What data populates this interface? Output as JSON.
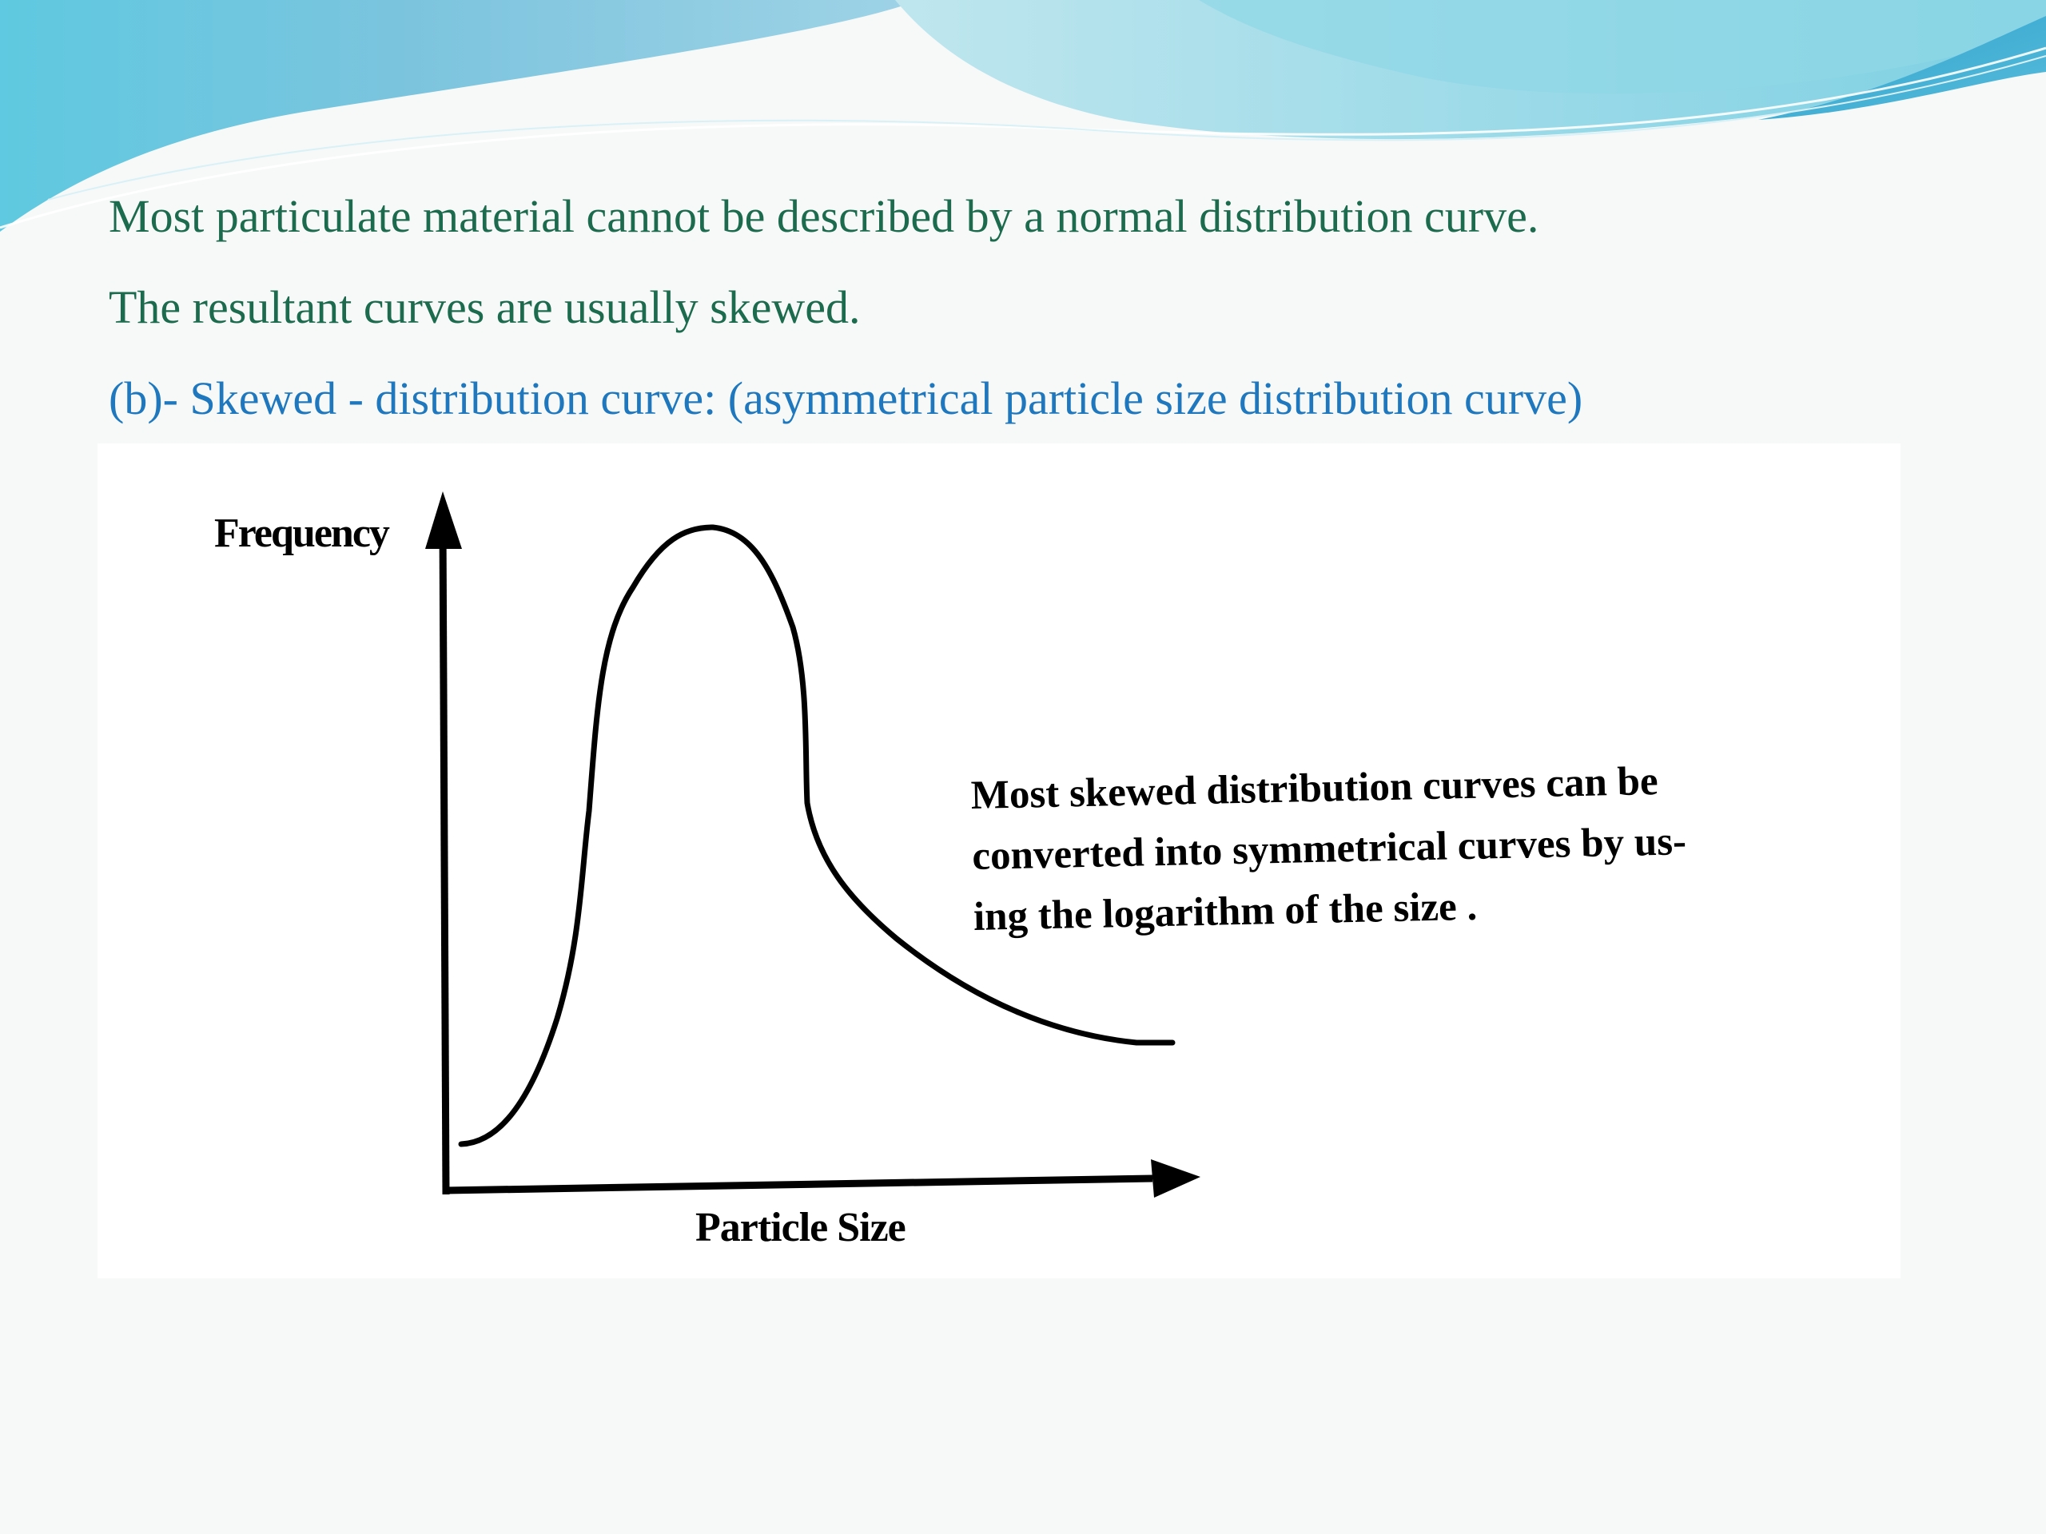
{
  "slide": {
    "lines": [
      "Most particulate material cannot be described by a normal distribution curve.",
      "The resultant curves are usually skewed.",
      "(b)- Skewed - distribution curve: (asymmetrical particle size distribution curve)"
    ],
    "colors": {
      "body_text": "#1d6b4e",
      "subheading_text": "#1f78be",
      "wave_light": "#a8dbe8",
      "wave_dark": "#3fa9cf"
    }
  },
  "figure": {
    "y_axis_label": "Frequency",
    "x_axis_label": "Particle Size",
    "annotation": [
      "Most skewed distribution curves can be",
      "converted into symmetrical curves by us-",
      "ing the logarithm of the size ."
    ],
    "curve": "right-skewed (positively skewed) unimodal frequency curve"
  }
}
